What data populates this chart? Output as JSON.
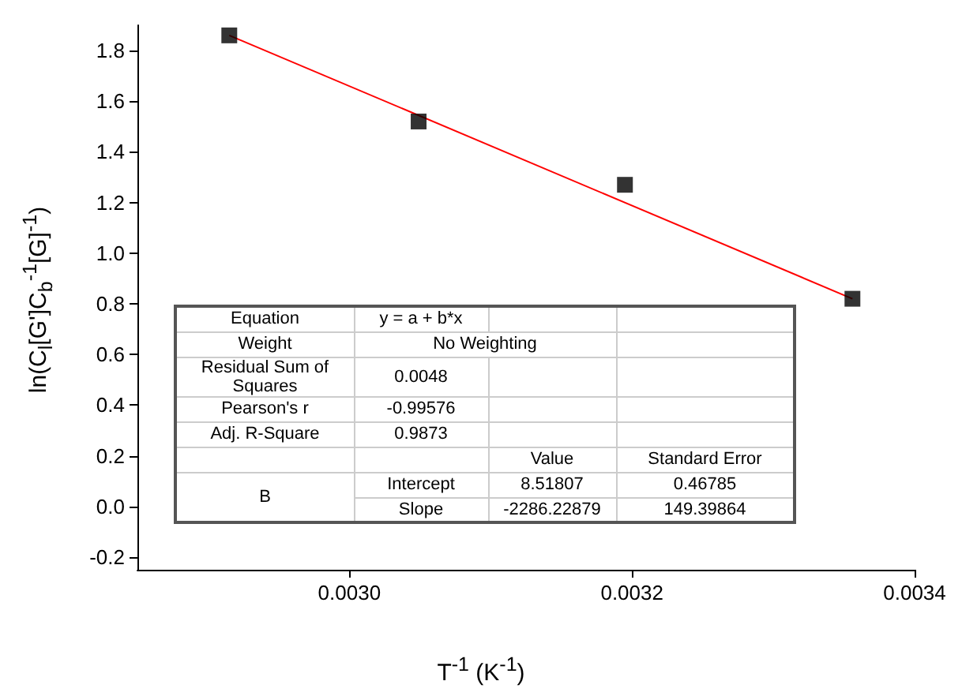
{
  "chart_data": {
    "type": "scatter",
    "xlabel": "T$^{-1}$ (K$^{-1}$)",
    "ylabel": "ln(C$_{l}$[G']C$_{b}$$^{-1}$[G]$^{-1}$)",
    "xlim": [
      0.00285,
      0.0034
    ],
    "xticks": [
      {
        "value": 0.003,
        "label": "0.0030"
      },
      {
        "value": 0.0032,
        "label": "0.0032"
      },
      {
        "value": 0.0034,
        "label": "0.0034"
      }
    ],
    "ylim": [
      -0.25,
      1.9
    ],
    "yticks": [
      {
        "value": -0.2,
        "label": "-0.2"
      },
      {
        "value": 0,
        "label": "0.0"
      },
      {
        "value": 0.2,
        "label": "0.2"
      },
      {
        "value": 0.4,
        "label": "0.4"
      },
      {
        "value": 0.6,
        "label": "0.6"
      },
      {
        "value": 0.8,
        "label": "0.8"
      },
      {
        "value": 1.0,
        "label": "1.0"
      },
      {
        "value": 1.2,
        "label": "1.2"
      },
      {
        "value": 1.4,
        "label": "1.4"
      },
      {
        "value": 1.6,
        "label": "1.6"
      },
      {
        "value": 1.8,
        "label": "1.8"
      }
    ],
    "grid": false,
    "series": [
      {
        "type": "scatter",
        "color": "#000000",
        "marker": "square",
        "x": [
          0.002915,
          0.003049,
          0.003195,
          0.003356
        ],
        "values": [
          1.86,
          1.52,
          1.27,
          0.82
        ]
      },
      {
        "type": "line",
        "color": "#ff0000",
        "marker": "none",
        "line_style": "solid",
        "x": [
          0.002915,
          0.003356
        ],
        "values": [
          1.86,
          0.82
        ]
      }
    ],
    "annotations": [
      "Equation",
      "y = a + b*x",
      "Weight",
      "No Weighting",
      "Residual Sum of Squares",
      "0.0048",
      "Pearson's r",
      "-0.99576",
      "Adj. R-Square",
      "0.9873",
      "Value",
      "Standard Error",
      "B",
      "Intercept",
      "8.51807",
      "0.46785",
      "Slope",
      "-2286.22879",
      "149.39864"
    ]
  }
}
